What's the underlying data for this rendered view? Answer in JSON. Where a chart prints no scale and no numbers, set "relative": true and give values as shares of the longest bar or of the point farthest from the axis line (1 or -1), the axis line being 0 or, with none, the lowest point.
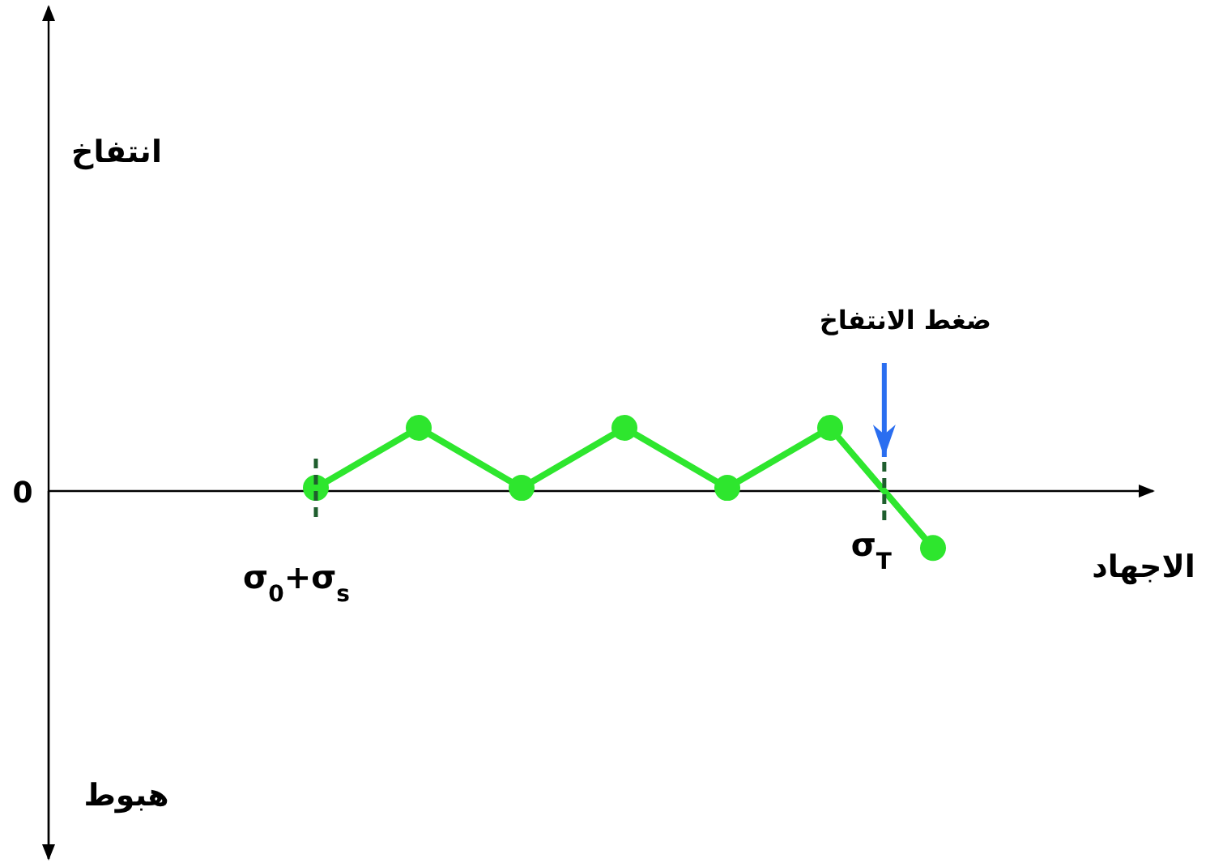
{
  "chart_data": {
    "type": "line",
    "relative": true,
    "xlabel": "الاجهاد",
    "categories": [
      null,
      null,
      null,
      null,
      null,
      null,
      null
    ],
    "series": [
      {
        "color": "#2ee62e",
        "values": [
          0.05,
          1,
          0.05,
          1,
          0.05,
          1,
          -0.9
        ]
      }
    ],
    "marker": "circle",
    "annotations": [
      "σ$_{0}$+σ$_{s}$",
      "σ$_{T}$",
      "ضغط الانتفاخ",
      "0",
      "هبوط",
      "انتفاخ"
    ]
  }
}
